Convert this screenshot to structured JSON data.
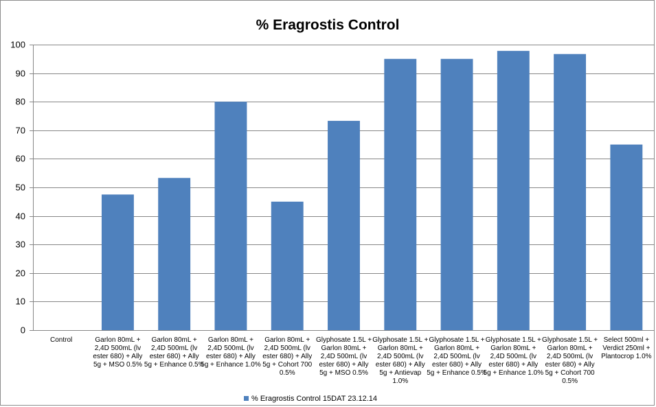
{
  "chart_data": {
    "type": "bar",
    "title": "% Eragrostis Control",
    "categories": [
      [
        "Control"
      ],
      [
        "Garlon 80mL +",
        "2,4D 500mL (lv",
        "ester 680) + Ally",
        "5g + MSO 0.5%"
      ],
      [
        "Garlon 80mL +",
        "2,4D 500mL (lv",
        "ester 680) + Ally",
        "5g + Enhance 0.5%"
      ],
      [
        "Garlon 80mL +",
        "2,4D 500mL (lv",
        "ester 680) + Ally",
        "5g + Enhance 1.0%"
      ],
      [
        "Garlon 80mL +",
        "2,4D 500mL (lv",
        "ester 680) + Ally",
        "5g + Cohort 700",
        "0.5%"
      ],
      [
        "Glyphosate 1.5L +",
        "Garlon 80mL +",
        "2,4D 500mL (lv",
        "ester 680) + Ally",
        "5g + MSO 0.5%"
      ],
      [
        "Glyphosate 1.5L +",
        "Garlon 80mL +",
        "2,4D 500mL (lv",
        "ester 680) + Ally",
        "5g + Antievap",
        "1.0%"
      ],
      [
        "Glyphosate 1.5L +",
        "Garlon 80mL +",
        "2,4D 500mL (lv",
        "ester 680) + Ally",
        "5g + Enhance 0.5%"
      ],
      [
        "Glyphosate 1.5L +",
        "Garlon 80mL +",
        "2,4D 500mL (lv",
        "ester 680) + Ally",
        "5g + Enhance 1.0%"
      ],
      [
        "Glyphosate 1.5L +",
        "Garlon 80mL +",
        "2,4D 500mL (lv",
        "ester 680) + Ally",
        "5g + Cohort 700",
        "0.5%"
      ],
      [
        "Select 500ml +",
        "Verdict 250ml +",
        "Plantocrop 1.0%"
      ]
    ],
    "series": [
      {
        "name": "% Eragrostis Control 15DAT 23.12.14",
        "color": "#4f81bd",
        "values": [
          0,
          47.5,
          53.3,
          80,
          45,
          73.3,
          95,
          95,
          97.8,
          96.7,
          65
        ]
      }
    ],
    "yticks": [
      0,
      10,
      20,
      30,
      40,
      50,
      60,
      70,
      80,
      90,
      100
    ],
    "ylim": [
      0,
      100
    ],
    "grid": true,
    "legend_position": "bottom"
  }
}
